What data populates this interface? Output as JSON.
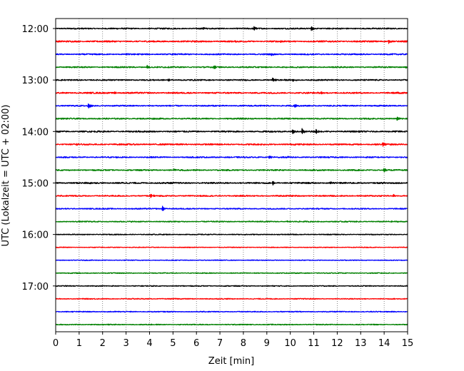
{
  "chart_data": {
    "type": "line",
    "subtype": "helicorder",
    "xlabel": "Zeit  [min]",
    "ylabel": "UTC (Lokalzeit = UTC + 02:00)",
    "xlim": [
      0,
      15
    ],
    "x_ticks": [
      "0",
      "1",
      "2",
      "3",
      "4",
      "5",
      "6",
      "7",
      "8",
      "9",
      "10",
      "11",
      "12",
      "13",
      "14",
      "15"
    ],
    "y_ticks": [
      "12:00",
      "13:00",
      "14:00",
      "15:00",
      "16:00",
      "17:00"
    ],
    "grid": "vertical dotted lines at each minute",
    "color_cycle": [
      "#000000",
      "#ff0000",
      "#0000ff",
      "#008000"
    ],
    "rows": [
      {
        "start": "12:00",
        "color": "#000000",
        "noise": 0.7,
        "events": [
          {
            "t": 6.3,
            "amp": 1.4
          },
          {
            "t": 8.45,
            "amp": 3.2
          },
          {
            "t": 10.9,
            "amp": 3.6
          }
        ]
      },
      {
        "start": "12:15",
        "color": "#ff0000",
        "noise": 0.8,
        "events": [
          {
            "t": 9.6,
            "amp": 1.3
          },
          {
            "t": 14.2,
            "amp": 2.8
          }
        ]
      },
      {
        "start": "12:30",
        "color": "#0000ff",
        "noise": 0.7,
        "events": [
          {
            "t": 3.0,
            "amp": 1.2
          },
          {
            "t": 9.2,
            "amp": 1.6
          }
        ]
      },
      {
        "start": "12:45",
        "color": "#008000",
        "noise": 0.7,
        "events": [
          {
            "t": 3.9,
            "amp": 2.6
          },
          {
            "t": 6.75,
            "amp": 2.4
          },
          {
            "t": 14.9,
            "amp": 1.2
          }
        ]
      },
      {
        "start": "13:00",
        "color": "#000000",
        "noise": 0.7,
        "events": [
          {
            "t": 4.8,
            "amp": 1.4
          },
          {
            "t": 9.25,
            "amp": 3.0
          },
          {
            "t": 10.1,
            "amp": 1.8
          }
        ]
      },
      {
        "start": "13:15",
        "color": "#ff0000",
        "noise": 0.8,
        "events": [
          {
            "t": 2.5,
            "amp": 1.8
          },
          {
            "t": 11.3,
            "amp": 1.3
          },
          {
            "t": 14.6,
            "amp": 1.2
          }
        ]
      },
      {
        "start": "13:30",
        "color": "#0000ff",
        "noise": 0.7,
        "events": [
          {
            "t": 1.4,
            "amp": 4.6
          },
          {
            "t": 10.2,
            "amp": 2.0
          }
        ]
      },
      {
        "start": "13:45",
        "color": "#008000",
        "noise": 0.7,
        "events": [
          {
            "t": 14.55,
            "amp": 2.8
          }
        ]
      },
      {
        "start": "14:00",
        "color": "#000000",
        "noise": 0.8,
        "events": [
          {
            "t": 10.1,
            "amp": 3.4
          },
          {
            "t": 10.5,
            "amp": 4.2
          },
          {
            "t": 11.1,
            "amp": 2.4
          }
        ]
      },
      {
        "start": "14:15",
        "color": "#ff0000",
        "noise": 0.8,
        "events": [
          {
            "t": 0.9,
            "amp": 1.8
          },
          {
            "t": 13.95,
            "amp": 3.0
          }
        ]
      },
      {
        "start": "14:30",
        "color": "#0000ff",
        "noise": 0.7,
        "events": [
          {
            "t": 9.1,
            "amp": 2.6
          },
          {
            "t": 9.85,
            "amp": 1.5
          }
        ]
      },
      {
        "start": "14:45",
        "color": "#008000",
        "noise": 0.7,
        "events": [
          {
            "t": 5.05,
            "amp": 1.8
          },
          {
            "t": 14.0,
            "amp": 2.8
          }
        ]
      },
      {
        "start": "15:00",
        "color": "#000000",
        "noise": 0.8,
        "events": [
          {
            "t": 1.4,
            "amp": 1.3
          },
          {
            "t": 9.25,
            "amp": 3.0
          },
          {
            "t": 11.7,
            "amp": 2.0
          }
        ]
      },
      {
        "start": "15:15",
        "color": "#ff0000",
        "noise": 0.7,
        "events": [
          {
            "t": 4.05,
            "amp": 2.6
          },
          {
            "t": 14.4,
            "amp": 1.6
          }
        ]
      },
      {
        "start": "15:30",
        "color": "#0000ff",
        "noise": 0.6,
        "events": [
          {
            "t": 4.55,
            "amp": 4.0
          }
        ]
      },
      {
        "start": "15:45",
        "color": "#008000",
        "noise": 0.6,
        "events": [
          {
            "t": 9.85,
            "amp": 1.2
          }
        ]
      },
      {
        "start": "16:00",
        "color": "#000000",
        "noise": 0.5,
        "events": []
      },
      {
        "start": "16:15",
        "color": "#ff0000",
        "noise": 0.4,
        "events": []
      },
      {
        "start": "16:30",
        "color": "#0000ff",
        "noise": 0.4,
        "events": []
      },
      {
        "start": "16:45",
        "color": "#008000",
        "noise": 0.5,
        "events": []
      },
      {
        "start": "17:00",
        "color": "#000000",
        "noise": 0.5,
        "events": []
      },
      {
        "start": "17:15",
        "color": "#ff0000",
        "noise": 0.5,
        "events": []
      },
      {
        "start": "17:30",
        "color": "#0000ff",
        "noise": 0.5,
        "events": []
      },
      {
        "start": "17:45",
        "color": "#008000",
        "noise": 0.5,
        "events": []
      }
    ]
  }
}
